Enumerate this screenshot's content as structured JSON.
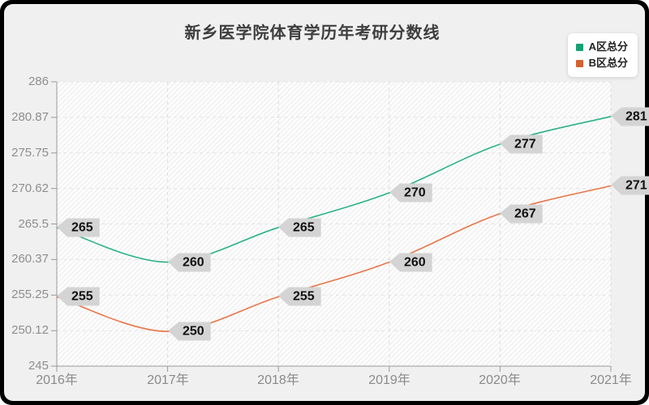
{
  "title": "新乡医学院体育学历年考研分数线",
  "legend": {
    "items": [
      {
        "label": "A区总分",
        "color": "#16a173"
      },
      {
        "label": "B区总分",
        "color": "#d2622f"
      }
    ]
  },
  "colors": {
    "frame": "#000000",
    "card_background": "#f0f0f0",
    "plot_background": "#fdfdfd",
    "hatch_line": "#ececec",
    "axis": "#999999",
    "grid_vertical": "#dcdcdc",
    "grid_horizontal": "#e3e3e3",
    "tick_label": "#8e8e8e",
    "title_text": "#3e3e3e",
    "point_label_background": "#d4d4d4",
    "point_label_text": "#111111",
    "series_a_line": "#2bb286",
    "series_b_line": "#e8764a"
  },
  "chart_data": {
    "type": "line",
    "smooth": true,
    "title": "新乡医学院体育学历年考研分数线",
    "x": [
      "2016年",
      "2017年",
      "2018年",
      "2019年",
      "2020年",
      "2021年"
    ],
    "series": [
      {
        "name": "A区总分",
        "color": "#2bb286",
        "values": [
          265,
          260,
          265,
          270,
          277,
          281
        ]
      },
      {
        "name": "B区总分",
        "color": "#e8764a",
        "values": [
          255,
          250,
          255,
          260,
          267,
          271
        ]
      }
    ],
    "ylim": [
      245,
      286
    ],
    "yticks": [
      245,
      250.12,
      255.25,
      260.37,
      265.5,
      270.62,
      275.75,
      280.87,
      286
    ],
    "grid": true,
    "grid_style": "dashed",
    "legend_position": "top-right",
    "point_labels": true,
    "xlabel": "",
    "ylabel": ""
  }
}
